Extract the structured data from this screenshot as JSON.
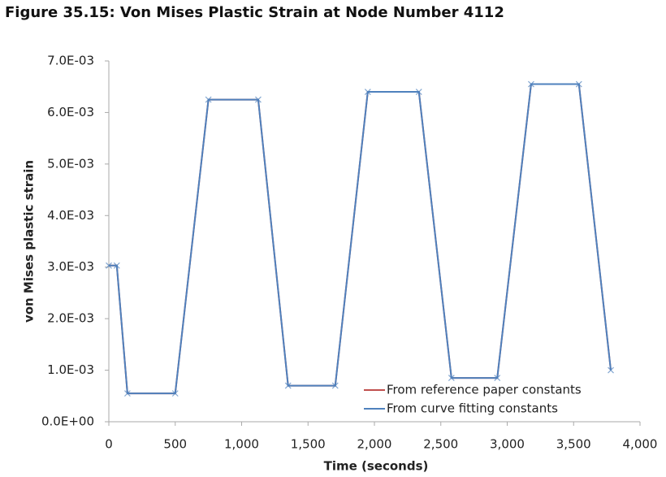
{
  "chart_data": {
    "type": "line",
    "title": "Figure 35.15: Von Mises Plastic Strain at Node Number 4112",
    "x_label": "Time (seconds)",
    "y_label": "von Mises plastic strain",
    "x": [
      0,
      60,
      140,
      500,
      750,
      1125,
      1350,
      1705,
      1950,
      2335,
      2580,
      2925,
      3180,
      3540,
      3780
    ],
    "series": [
      {
        "name": "From reference paper constants",
        "color": "#c0504d",
        "values": [
          0.00303,
          0.00303,
          0.00055,
          0.00055,
          0.00625,
          0.00625,
          0.0007,
          0.0007,
          0.0064,
          0.0064,
          0.00085,
          0.00085,
          0.00655,
          0.00655,
          0.001
        ]
      },
      {
        "name": "From curve fitting constants",
        "color": "#4f81bd",
        "marker": "x",
        "values": [
          0.00303,
          0.00303,
          0.00055,
          0.00055,
          0.00625,
          0.00625,
          0.0007,
          0.0007,
          0.0064,
          0.0064,
          0.00085,
          0.00085,
          0.00655,
          0.00655,
          0.001
        ]
      }
    ],
    "xlim": [
      0,
      4000
    ],
    "xticks": [
      0,
      500,
      {
        "value": 1000,
        "label": "1,000"
      },
      {
        "value": 1500,
        "label": "1,500"
      },
      {
        "value": 2000,
        "label": "2,000"
      },
      {
        "value": 2500,
        "label": "2,500"
      },
      {
        "value": 3000,
        "label": "3,000"
      },
      {
        "value": 3500,
        "label": "3,500"
      },
      {
        "value": 4000,
        "label": "4,000"
      }
    ],
    "ylim": [
      0,
      0.007
    ],
    "yticks": [
      {
        "value": 0,
        "label": "0.0E+00"
      },
      {
        "value": 0.001,
        "label": "1.0E-03"
      },
      {
        "value": 0.002,
        "label": "2.0E-03"
      },
      {
        "value": 0.003,
        "label": "3.0E-03"
      },
      {
        "value": 0.004,
        "label": "4.0E-03"
      },
      {
        "value": 0.005,
        "label": "5.0E-03"
      },
      {
        "value": 0.006,
        "label": "6.0E-03"
      },
      {
        "value": 0.007,
        "label": "7.0E-03"
      }
    ],
    "grid": false,
    "legend": "lower right"
  }
}
